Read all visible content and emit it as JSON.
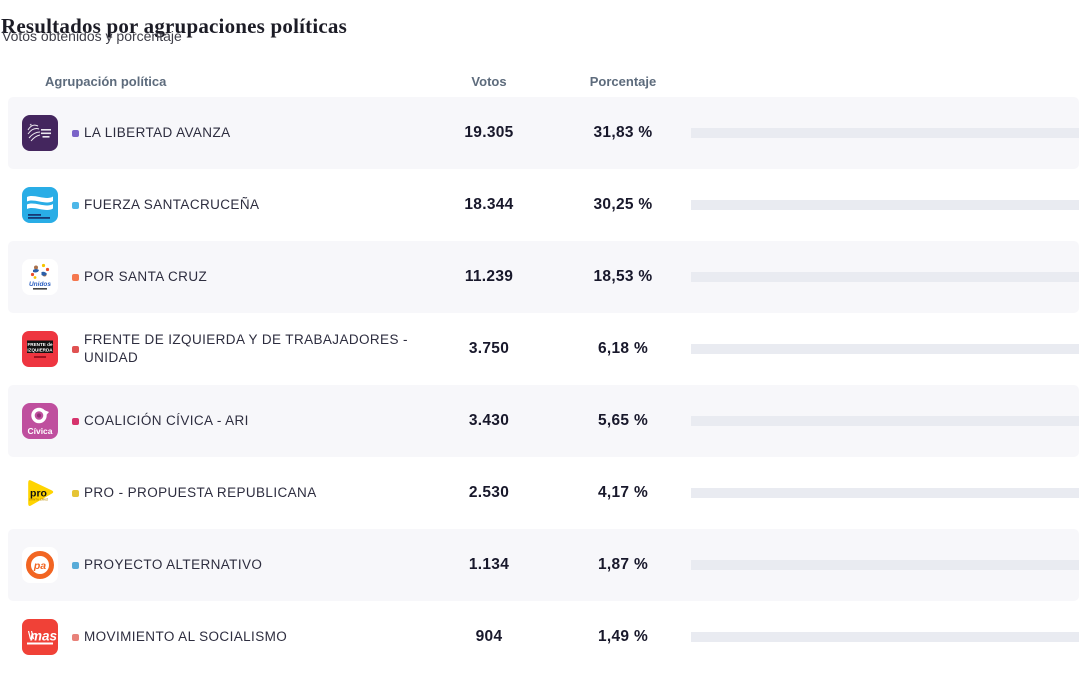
{
  "page": {
    "title": "Resultados por agrupaciones políticas",
    "subtitle": "Votos obtenidos y porcentaje"
  },
  "table": {
    "headers": {
      "party": "Agrupación política",
      "votes": "Votos",
      "percentage": "Porcentaje"
    },
    "track_color": "#e9ebf1",
    "rows": [
      {
        "name": "LA LIBERTAD AVANZA",
        "votes": "19.305",
        "percentage": "31,83 %",
        "percent_value": 31.83,
        "bar_color": "#7239b3",
        "dot_color": "#7b64c8",
        "logo": "la-libertad-avanza"
      },
      {
        "name": "FUERZA SANTACRUCEÑA",
        "votes": "18.344",
        "percentage": "30,25 %",
        "percent_value": 30.25,
        "bar_color": "#3eb5e8",
        "dot_color": "#4db7e8",
        "logo": "fuerza-santacrucena"
      },
      {
        "name": "POR SANTA CRUZ",
        "votes": "11.239",
        "percentage": "18,53 %",
        "percent_value": 18.53,
        "bar_color": "#fa7c48",
        "dot_color": "#f5774e",
        "logo": "por-santa-cruz",
        "logo_text": "Unidos"
      },
      {
        "name": "FRENTE DE IZQUIERDA Y DE TRABAJADORES - UNIDAD",
        "votes": "3.750",
        "percentage": "6,18 %",
        "percent_value": 6.18,
        "bar_color": "#e8293b",
        "dot_color": "#e05252",
        "logo": "frente-de-izquierda",
        "logo_text_line1": "FRENTE de",
        "logo_text_line2": "IZQUIERDA"
      },
      {
        "name": "COALICIÓN CÍVICA - ARI",
        "votes": "3.430",
        "percentage": "5,65 %",
        "percent_value": 5.65,
        "bar_color": "#e0136b",
        "dot_color": "#d6336c",
        "logo": "coalicion-civica-ari",
        "logo_text": "Cívica"
      },
      {
        "name": "PRO - PROPUESTA REPUBLICANA",
        "votes": "2.530",
        "percentage": "4,17 %",
        "percent_value": 4.17,
        "bar_color": "#f8ca02",
        "dot_color": "#e5c435",
        "logo": "pro",
        "logo_text": "pro",
        "logo_subtext": "SANTA CRUZ"
      },
      {
        "name": "PROYECTO ALTERNATIVO",
        "votes": "1.134",
        "percentage": "1,87 %",
        "percent_value": 1.87,
        "bar_color": "#41b0e0",
        "dot_color": "#58abd8",
        "logo": "proyecto-alternativo",
        "logo_text": "pa"
      },
      {
        "name": "MOVIMIENTO AL SOCIALISMO",
        "votes": "904",
        "percentage": "1,49 %",
        "percent_value": 1.49,
        "bar_color": "#ec7065",
        "dot_color": "#e8827a",
        "logo": "mas",
        "logo_text": "mas"
      }
    ]
  },
  "chart_data": {
    "type": "bar",
    "orientation": "horizontal",
    "title": "Resultados por agrupaciones políticas",
    "subtitle": "Votos obtenidos y porcentaje",
    "categories": [
      "LA LIBERTAD AVANZA",
      "FUERZA SANTACRUCEÑA",
      "POR SANTA CRUZ",
      "FRENTE DE IZQUIERDA Y DE TRABAJADORES - UNIDAD",
      "COALICIÓN CÍVICA - ARI",
      "PRO - PROPUESTA REPUBLICANA",
      "PROYECTO ALTERNATIVO",
      "MOVIMIENTO AL SOCIALISMO"
    ],
    "series": [
      {
        "name": "Votos",
        "values": [
          19305,
          18344,
          11239,
          3750,
          3430,
          2530,
          1134,
          904
        ]
      },
      {
        "name": "Porcentaje",
        "values": [
          31.83,
          30.25,
          18.53,
          6.18,
          5.65,
          4.17,
          1.87,
          1.49
        ]
      }
    ],
    "colors": [
      "#7239b3",
      "#3eb5e8",
      "#fa7c48",
      "#e8293b",
      "#e0136b",
      "#f8ca02",
      "#41b0e0",
      "#ec7065"
    ],
    "xlim_percent": [
      0,
      100
    ],
    "grid": false,
    "legend": false
  }
}
